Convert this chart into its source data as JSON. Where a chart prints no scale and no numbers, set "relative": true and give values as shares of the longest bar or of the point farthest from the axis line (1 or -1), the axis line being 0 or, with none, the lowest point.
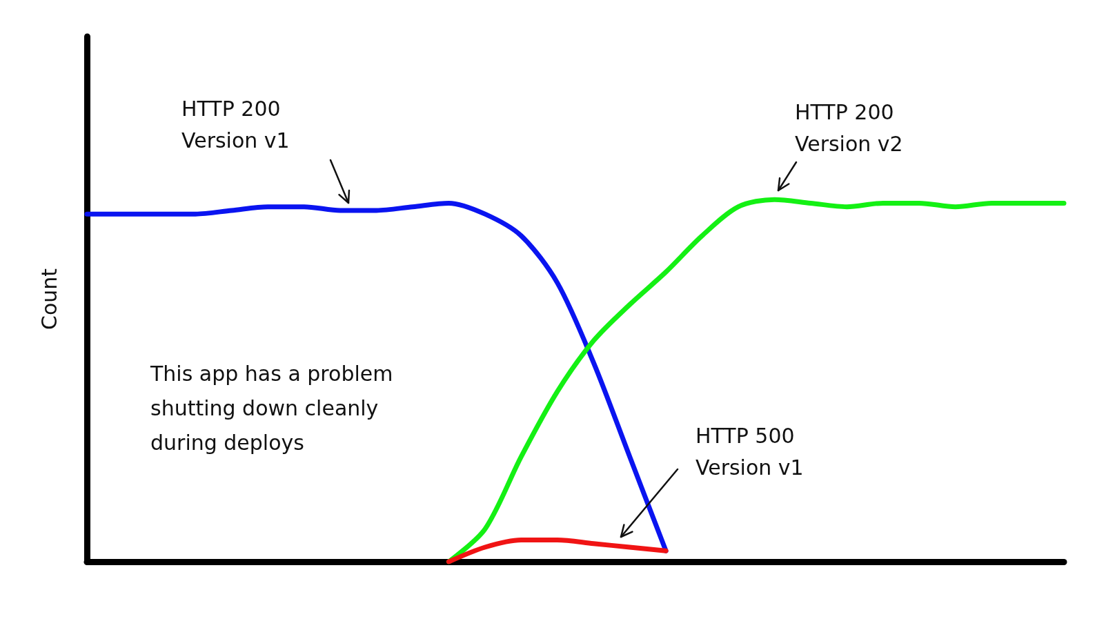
{
  "chart_data": {
    "type": "line",
    "relative": true,
    "ylabel": "Count",
    "legend": false,
    "grid": false,
    "marker": "none",
    "line_style": "solid",
    "categories": [
      null,
      null,
      null,
      null,
      null,
      null,
      null,
      null,
      null,
      null,
      null,
      null,
      null,
      null,
      null,
      null,
      null,
      null,
      null,
      null,
      null,
      null,
      null,
      null,
      null,
      null,
      null,
      null
    ],
    "series": [
      {
        "name": "HTTP 200\nVersion v1",
        "color": "#0a14f0",
        "values": [
          0.96,
          0.96,
          0.96,
          0.96,
          0.97,
          0.98,
          0.98,
          0.97,
          0.97,
          0.98,
          0.99,
          0.96,
          0.9,
          0.77,
          0.55,
          0.29,
          0.03,
          null,
          null,
          null,
          null,
          null,
          null,
          null,
          null,
          null,
          null,
          null
        ]
      },
      {
        "name": "HTTP 200\nVersion v2",
        "color": "#14f014",
        "values": [
          null,
          null,
          null,
          null,
          null,
          null,
          null,
          null,
          null,
          null,
          0,
          0.09,
          0.29,
          0.47,
          0.61,
          0.71,
          0.8,
          0.9,
          0.98,
          1.0,
          0.99,
          0.98,
          0.99,
          0.99,
          0.98,
          0.99,
          0.99,
          0.99
        ]
      },
      {
        "name": "HTTP 500\nVersion v1",
        "color": "#f01414",
        "values": [
          null,
          null,
          null,
          null,
          null,
          null,
          null,
          null,
          null,
          null,
          0,
          0.04,
          0.06,
          0.06,
          0.05,
          0.04,
          0.03,
          null,
          null,
          null,
          null,
          null,
          null,
          null,
          null,
          null,
          null,
          null
        ]
      }
    ],
    "annotations": [
      "This app has a problem\nshutting down cleanly\nduring deploys"
    ]
  }
}
